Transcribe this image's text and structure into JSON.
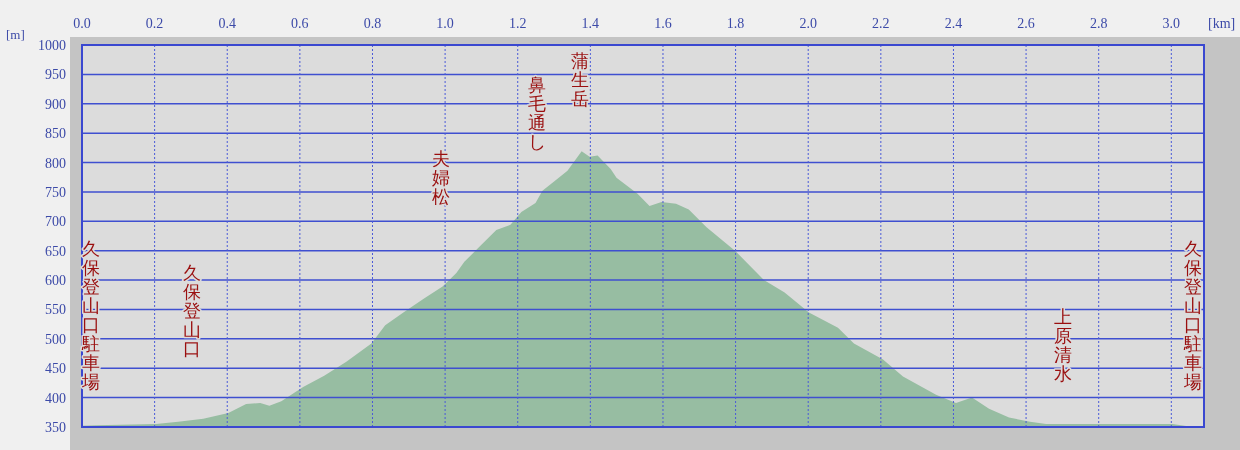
{
  "chart_data": {
    "type": "area",
    "xlabel": "[km]",
    "ylabel": "[m]",
    "xlim": [
      0,
      3.09
    ],
    "ylim": [
      350,
      1000
    ],
    "xticks": [
      {
        "value": 0,
        "label": "0.0"
      },
      0.2,
      0.4,
      0.6,
      0.8,
      {
        "value": 1,
        "label": "1.0"
      },
      1.2,
      1.4,
      1.6,
      1.8,
      {
        "value": 2,
        "label": "2.0"
      },
      2.2,
      2.4,
      2.6,
      2.8,
      {
        "value": 3,
        "label": "3.0"
      }
    ],
    "yticks": [
      350,
      400,
      450,
      500,
      550,
      600,
      650,
      700,
      750,
      800,
      850,
      900,
      950,
      1000
    ],
    "grid": true,
    "x": [
      0.0,
      0.039,
      0.204,
      0.265,
      0.334,
      0.403,
      0.452,
      0.491,
      0.516,
      0.549,
      0.609,
      0.667,
      0.728,
      0.797,
      0.835,
      0.885,
      0.943,
      0.993,
      1.031,
      1.053,
      1.1,
      1.141,
      1.18,
      1.21,
      1.249,
      1.268,
      1.307,
      1.337,
      1.376,
      1.398,
      1.42,
      1.456,
      1.472,
      1.53,
      1.563,
      1.596,
      1.636,
      1.671,
      1.72,
      1.8,
      1.878,
      1.935,
      2.002,
      2.082,
      2.126,
      2.206,
      2.261,
      2.352,
      2.407,
      2.451,
      2.498,
      2.553,
      2.611,
      2.655,
      3.003,
      3.05,
      3.09
    ],
    "series": [
      {
        "color": "#97bda2",
        "values": [
          352,
          353,
          355,
          359,
          364,
          374,
          389,
          391,
          386,
          394,
          418,
          437,
          461,
          492,
          523,
          545,
          569,
          589,
          612,
          631,
          660,
          685,
          694,
          716,
          731,
          752,
          771,
          786,
          819,
          810,
          812,
          789,
          774,
          747,
          726,
          733,
          730,
          720,
          690,
          649,
          600,
          579,
          545,
          519,
          492,
          465,
          436,
          405,
          391,
          400,
          381,
          366,
          359,
          355,
          355,
          351,
          351
        ]
      }
    ],
    "annotations": [
      "久保登山口駐車場",
      "久保登山口",
      "夫婦松",
      "鼻毛通し",
      "蒲生岳",
      "上原清水",
      "久保登山口駐車場"
    ]
  }
}
